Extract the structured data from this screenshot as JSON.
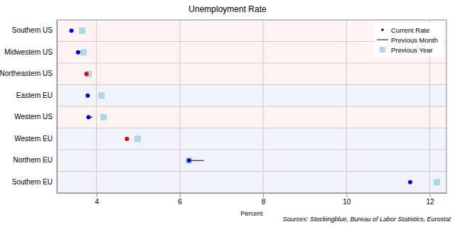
{
  "chart_data": {
    "type": "dot",
    "title": "Unemployment Rate",
    "x_label": "Percent",
    "annotation": "Sources: Stockingblue, Bureau of Labor Statistics, Eurostat",
    "categories": [
      "Southern US",
      "Midwestern US",
      "Northeastern US",
      "Eastern EU",
      "Western US",
      "Western EU",
      "Northern EU",
      "Southern EU"
    ],
    "colors": [
      "#fff2f2",
      "#fff2f2",
      "#fff2f2",
      "#f2f2fb",
      "#fff2f2",
      "#f2f2fb",
      "#f2f2fb",
      "#f2f2fb"
    ],
    "series": [
      {
        "name": "Current Rate",
        "type": "scatter",
        "marker": "circle",
        "color": "#000000",
        "colors": [
          "#0000cd",
          "#0000cd",
          "#dd0000",
          "#0000cd",
          "#0000cd",
          "#dd0000",
          "#0000cd",
          "#0000cd"
        ],
        "values": [
          3.4,
          3.56,
          3.76,
          3.79,
          3.81,
          4.73,
          6.22,
          11.53
        ]
      },
      {
        "name": "Previous Month",
        "type": "line",
        "line_style": "solid",
        "color": "#000000",
        "values": [
          3.4,
          3.56,
          3.75,
          3.79,
          3.9,
          4.72,
          6.58,
          11.53
        ]
      },
      {
        "name": "Previous Year",
        "type": "scatter",
        "marker": "square",
        "color": "#add8e6",
        "values": [
          3.66,
          3.69,
          3.81,
          4.12,
          4.17,
          4.99,
          6.22,
          12.17
        ]
      }
    ],
    "xlim": [
      3.05,
      12.4
    ],
    "xticks": [
      4,
      6,
      8,
      10,
      12
    ],
    "grid": true,
    "legend": "top-right",
    "orientation": "horizontal"
  }
}
